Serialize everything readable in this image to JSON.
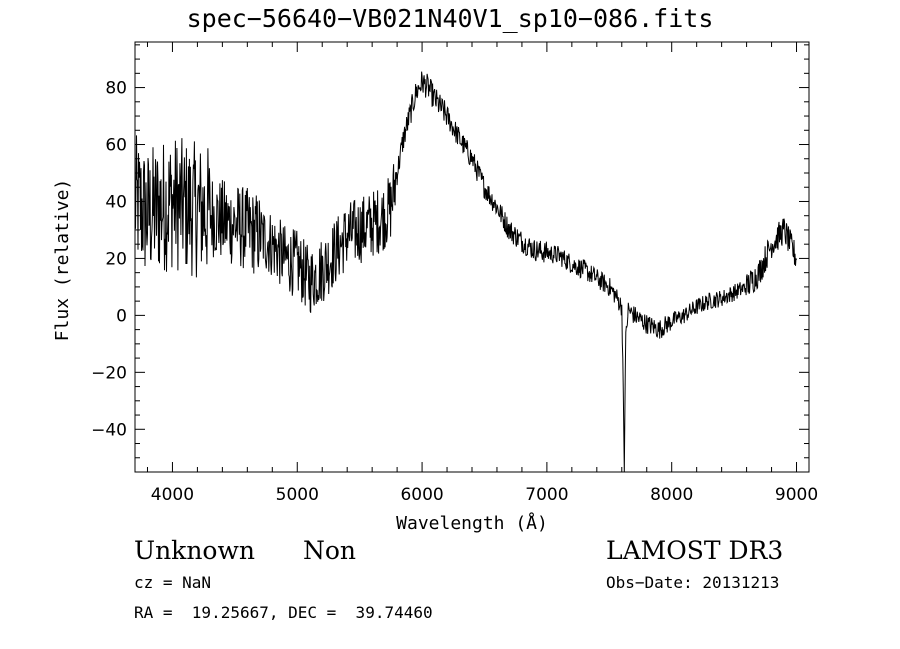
{
  "chart_data": {
    "type": "line",
    "title": "spec−56640−VB021N40V1_sp10−086.fits",
    "xlabel": "Wavelength (Å)",
    "ylabel": "Flux (relative)",
    "xlim": [
      3700,
      9100
    ],
    "ylim": [
      -55,
      96
    ],
    "xticks": [
      4000,
      5000,
      6000,
      7000,
      8000,
      9000
    ],
    "xtick_labels": [
      "4000",
      "5000",
      "6000",
      "7000",
      "8000",
      "9000"
    ],
    "yticks": [
      -40,
      -20,
      0,
      20,
      40,
      60,
      80
    ],
    "ytick_labels": [
      "−40",
      "−20",
      "0",
      "20",
      "40",
      "60",
      "80"
    ],
    "grid": false,
    "series": [
      {
        "name": "flux",
        "x": [
          3700,
          3800,
          3900,
          4000,
          4100,
          4200,
          4300,
          4400,
          4500,
          4600,
          4700,
          4800,
          4900,
          5000,
          5100,
          5200,
          5300,
          5400,
          5500,
          5600,
          5700,
          5750,
          5800,
          5850,
          5900,
          5950,
          6000,
          6050,
          6100,
          6200,
          6300,
          6400,
          6500,
          6600,
          6700,
          6800,
          6900,
          7000,
          7100,
          7200,
          7300,
          7400,
          7500,
          7550,
          7600,
          7610,
          7620,
          7630,
          7650,
          7700,
          7800,
          7900,
          8000,
          8100,
          8200,
          8300,
          8400,
          8500,
          8600,
          8700,
          8800,
          8900,
          9000
        ],
        "y": [
          40,
          35,
          38,
          40,
          38,
          37,
          36,
          33,
          32,
          30,
          28,
          25,
          20,
          18,
          12,
          16,
          22,
          28,
          30,
          32,
          35,
          38,
          50,
          62,
          70,
          78,
          82,
          80,
          76,
          70,
          62,
          55,
          45,
          38,
          30,
          26,
          23,
          22,
          21,
          18,
          16,
          13,
          10,
          7,
          3,
          -20,
          -55,
          -10,
          2,
          0,
          -3,
          -5,
          -2,
          0,
          3,
          5,
          6,
          8,
          10,
          15,
          25,
          30,
          20
        ]
      }
    ],
    "annotations": {
      "class": "Unknown",
      "subclass": "Non",
      "survey": "LAMOST DR3",
      "cz": "cz = NaN",
      "obs_date": "Obs−Date: 20131213",
      "radec": "RA =  19.25667, DEC =  39.74460"
    }
  }
}
